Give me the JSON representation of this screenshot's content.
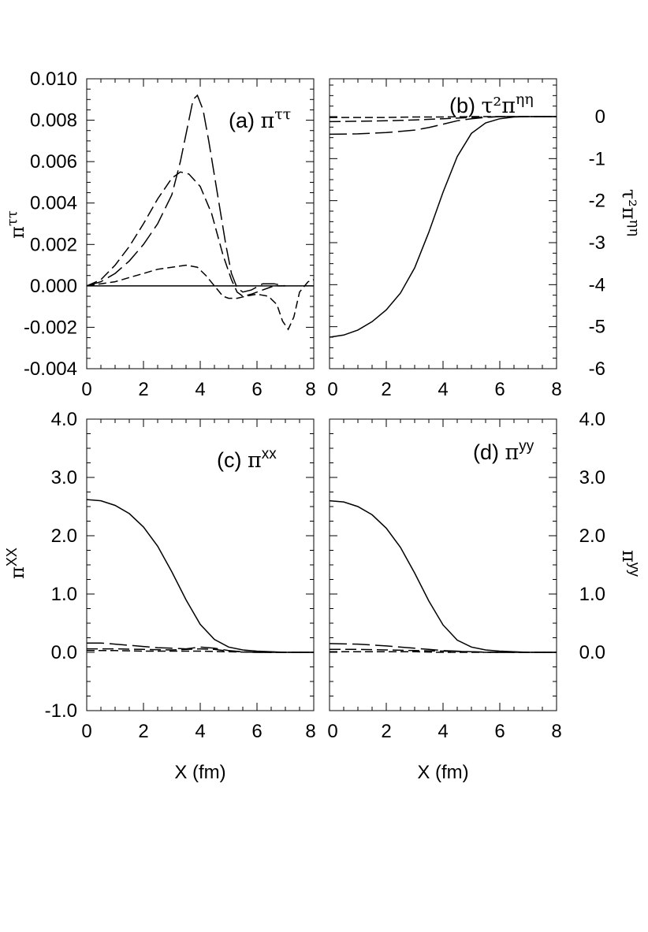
{
  "chart_data": [
    {
      "id": "a",
      "type": "line",
      "title_prefix": "(a) ",
      "title_symbol": "π",
      "title_sup": "ττ",
      "ylabel_symbol": "π",
      "ylabel_sup": "ττ",
      "xlabel": "",
      "xlim": [
        0,
        8
      ],
      "ylim": [
        -0.004,
        0.01
      ],
      "xticks": [
        "0",
        "2",
        "4",
        "6",
        "8"
      ],
      "yticks": [
        {
          "v": 0.01,
          "t": "0.010"
        },
        {
          "v": 0.008,
          "t": "0.008"
        },
        {
          "v": 0.006,
          "t": "0.006"
        },
        {
          "v": 0.004,
          "t": "0.004"
        },
        {
          "v": 0.002,
          "t": "0.002"
        },
        {
          "v": 0.0,
          "t": "0.000"
        },
        {
          "v": -0.002,
          "t": "-0.002"
        },
        {
          "v": -0.004,
          "t": "-0.004"
        }
      ],
      "series": [
        {
          "name": "solid",
          "dash": "",
          "x": [
            0,
            8
          ],
          "y": [
            0,
            0
          ]
        },
        {
          "name": "long-dash",
          "dash": "22,7",
          "x": [
            0,
            0.5,
            1,
            1.5,
            2,
            2.5,
            3,
            3.3,
            3.6,
            3.75,
            3.9,
            4.1,
            4.3,
            4.6,
            4.9,
            5.1,
            5.3,
            5.5,
            5.8,
            6.2,
            6.6,
            7.0
          ],
          "y": [
            0,
            0.0002,
            0.0006,
            0.0012,
            0.002,
            0.003,
            0.0044,
            0.006,
            0.008,
            0.009,
            0.0092,
            0.0085,
            0.007,
            0.0045,
            0.002,
            0.0006,
            -0.0001,
            -0.0003,
            -0.0002,
            0.0001,
            0.0001,
            0.0
          ]
        },
        {
          "name": "medium-dash",
          "dash": "14,6",
          "x": [
            0,
            0.5,
            1,
            1.5,
            2,
            2.5,
            3,
            3.3,
            3.6,
            4.0,
            4.4,
            4.8,
            5.1,
            5.3,
            5.5,
            5.8,
            6.2,
            6.6,
            7.0
          ],
          "y": [
            0,
            0.0003,
            0.001,
            0.0019,
            0.003,
            0.0042,
            0.0052,
            0.0055,
            0.0054,
            0.0048,
            0.0035,
            0.0015,
            0.0003,
            -0.0003,
            -0.0005,
            -0.0004,
            -0.0002,
            0.0,
            0.0
          ]
        },
        {
          "name": "short-dash",
          "dash": "10,5",
          "x": [
            0,
            0.5,
            1,
            1.5,
            2,
            2.5,
            3,
            3.5,
            3.9,
            4.2,
            4.5,
            4.8,
            5.0,
            5.3,
            5.6,
            6.0,
            6.4,
            6.7,
            6.9,
            7.1,
            7.3,
            7.5,
            7.8,
            8.0
          ],
          "y": [
            0,
            0.0001,
            0.0002,
            0.0004,
            0.0006,
            0.0008,
            0.0009,
            0.001,
            0.0009,
            0.0005,
            0.0,
            -0.0005,
            -0.0006,
            -0.0006,
            -0.0005,
            -0.0004,
            -0.0005,
            -0.0009,
            -0.0017,
            -0.0021,
            -0.0015,
            -0.0003,
            0.0002,
            0.0003
          ]
        }
      ]
    },
    {
      "id": "b",
      "type": "line",
      "title_prefix": "(b) ",
      "title_symbol": "τ²π",
      "title_sup": "ηη",
      "ylabel_symbol": "τ²π",
      "ylabel_sup": "ηη",
      "xlabel": "",
      "xlim": [
        0,
        8
      ],
      "ylim": [
        -6,
        0.9
      ],
      "xticks": [
        "0",
        "2",
        "4",
        "6",
        "8"
      ],
      "yticks": [
        {
          "v": 0,
          "t": "0"
        },
        {
          "v": -1,
          "t": "-1"
        },
        {
          "v": -2,
          "t": "-2"
        },
        {
          "v": -3,
          "t": "-3"
        },
        {
          "v": -4,
          "t": "-4"
        },
        {
          "v": -5,
          "t": "-5"
        },
        {
          "v": -6,
          "t": "-6"
        }
      ],
      "series": [
        {
          "name": "solid",
          "dash": "",
          "x": [
            0,
            0.5,
            1,
            1.5,
            2,
            2.5,
            3,
            3.5,
            4,
            4.5,
            5,
            5.5,
            6,
            6.5,
            7,
            8
          ],
          "y": [
            -5.25,
            -5.2,
            -5.08,
            -4.88,
            -4.6,
            -4.2,
            -3.6,
            -2.75,
            -1.8,
            -0.95,
            -0.4,
            -0.15,
            -0.05,
            -0.01,
            0.0,
            0.0
          ]
        },
        {
          "name": "long-dash",
          "dash": "22,7",
          "x": [
            0,
            1,
            2,
            3,
            3.5,
            4,
            4.5,
            5,
            5.5,
            6,
            8
          ],
          "y": [
            -0.42,
            -0.41,
            -0.38,
            -0.32,
            -0.26,
            -0.18,
            -0.1,
            -0.05,
            -0.02,
            0.0,
            0.0
          ]
        },
        {
          "name": "medium-dash",
          "dash": "14,6",
          "x": [
            0,
            1,
            2,
            3,
            4,
            5,
            6,
            8
          ],
          "y": [
            -0.12,
            -0.11,
            -0.1,
            -0.08,
            -0.05,
            -0.02,
            0.0,
            0.0
          ]
        },
        {
          "name": "short-dash",
          "dash": "10,5",
          "x": [
            0,
            1,
            2,
            3,
            4,
            5,
            6,
            8
          ],
          "y": [
            -0.02,
            -0.02,
            -0.02,
            -0.01,
            -0.01,
            0.0,
            0.0,
            0.0
          ]
        }
      ]
    },
    {
      "id": "c",
      "type": "line",
      "title_prefix": "(c) ",
      "title_symbol": "π",
      "title_sup": "xx",
      "ylabel_symbol": "π",
      "ylabel_sup": "XX",
      "xlabel": "X (fm)",
      "xlim": [
        0,
        8
      ],
      "ylim": [
        -1,
        4
      ],
      "xticks": [
        "0",
        "2",
        "4",
        "6",
        "8"
      ],
      "yticks": [
        {
          "v": 4,
          "t": "4.0"
        },
        {
          "v": 3,
          "t": "3.0"
        },
        {
          "v": 2,
          "t": "2.0"
        },
        {
          "v": 1,
          "t": "1.0"
        },
        {
          "v": 0,
          "t": "0.0"
        },
        {
          "v": -1,
          "t": "-1.0"
        }
      ],
      "series": [
        {
          "name": "solid",
          "dash": "",
          "x": [
            0,
            0.5,
            1,
            1.5,
            2,
            2.5,
            3,
            3.5,
            4,
            4.5,
            5,
            5.5,
            6,
            6.5,
            7,
            8
          ],
          "y": [
            2.62,
            2.6,
            2.52,
            2.38,
            2.15,
            1.82,
            1.38,
            0.9,
            0.48,
            0.22,
            0.09,
            0.04,
            0.02,
            0.01,
            0.0,
            0.0
          ]
        },
        {
          "name": "long-dash",
          "dash": "22,7",
          "x": [
            0,
            0.5,
            1,
            1.5,
            2,
            2.5,
            3,
            3.5,
            4,
            4.5,
            5,
            5.5,
            6,
            8
          ],
          "y": [
            0.16,
            0.16,
            0.14,
            0.12,
            0.1,
            0.08,
            0.07,
            0.06,
            0.09,
            0.07,
            0.03,
            0.01,
            0.0,
            0.0
          ]
        },
        {
          "name": "medium-dash",
          "dash": "14,6",
          "x": [
            0,
            1,
            2,
            3,
            3.5,
            4,
            4.5,
            5,
            5.5,
            6,
            8
          ],
          "y": [
            0.06,
            0.06,
            0.05,
            0.04,
            0.05,
            0.06,
            0.05,
            0.02,
            0.01,
            0.0,
            0.0
          ]
        },
        {
          "name": "short-dash",
          "dash": "10,5",
          "x": [
            0,
            1,
            2,
            3,
            4,
            5,
            6,
            8
          ],
          "y": [
            0.03,
            0.03,
            0.02,
            0.02,
            0.02,
            0.01,
            0.0,
            0.0
          ]
        }
      ]
    },
    {
      "id": "d",
      "type": "line",
      "title_prefix": "(d) ",
      "title_symbol": "π",
      "title_sup": "yy",
      "ylabel_symbol": "π",
      "ylabel_sup": "yy",
      "xlabel": "X (fm)",
      "xlim": [
        0,
        8
      ],
      "ylim": [
        -1,
        4
      ],
      "xticks": [
        "0",
        "2",
        "4",
        "6",
        "8"
      ],
      "yticks": [
        {
          "v": 4,
          "t": "4.0"
        },
        {
          "v": 3,
          "t": "3.0"
        },
        {
          "v": 2,
          "t": "2.0"
        },
        {
          "v": 1,
          "t": "1.0"
        },
        {
          "v": 0,
          "t": "0.0"
        }
      ],
      "series": [
        {
          "name": "solid",
          "dash": "",
          "x": [
            0,
            0.5,
            1,
            1.5,
            2,
            2.5,
            3,
            3.5,
            4,
            4.5,
            5,
            5.5,
            6,
            6.5,
            7,
            8
          ],
          "y": [
            2.6,
            2.58,
            2.5,
            2.36,
            2.13,
            1.8,
            1.36,
            0.88,
            0.47,
            0.21,
            0.09,
            0.04,
            0.02,
            0.01,
            0.0,
            0.0
          ]
        },
        {
          "name": "long-dash",
          "dash": "22,7",
          "x": [
            0,
            1,
            2,
            3,
            3.5,
            4,
            4.5,
            5,
            5.5,
            6,
            8
          ],
          "y": [
            0.15,
            0.14,
            0.11,
            0.07,
            0.05,
            0.03,
            0.02,
            0.01,
            0.0,
            0.0,
            0.0
          ]
        },
        {
          "name": "medium-dash",
          "dash": "14,6",
          "x": [
            0,
            1,
            2,
            3,
            4,
            5,
            6,
            8
          ],
          "y": [
            0.05,
            0.05,
            0.04,
            0.03,
            0.02,
            0.01,
            0.0,
            0.0
          ]
        },
        {
          "name": "short-dash",
          "dash": "10,5",
          "x": [
            0,
            1,
            2,
            3,
            4,
            5,
            6,
            8
          ],
          "y": [
            0.01,
            0.01,
            0.01,
            0.01,
            0.0,
            0.0,
            0.0,
            0.0
          ]
        }
      ]
    }
  ]
}
